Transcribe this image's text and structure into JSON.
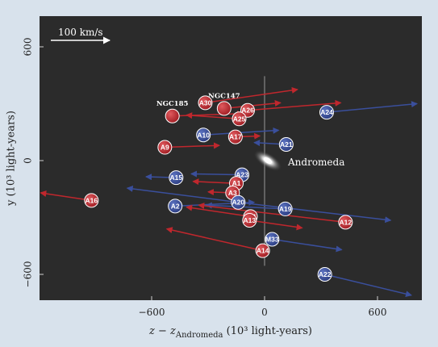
{
  "chart_data": {
    "type": "scatter",
    "xlabel": "z − z",
    "xlabel_sub": "Andromeda",
    "xlabel_units": " (10³ light-years)",
    "ylabel": "y (10³ light-years)",
    "xlim": [
      -1200,
      800
    ],
    "ylim": [
      -735,
      675
    ],
    "xticks": [
      -600,
      0,
      600
    ],
    "yticks": [
      -600,
      0,
      600
    ],
    "xtick_labels": [
      "−600",
      "0",
      "600"
    ],
    "ytick_labels": [
      "−600",
      "0",
      "600"
    ],
    "scale_arrow": {
      "label": "100 km/s"
    },
    "center_label": "Andromeda",
    "colors": {
      "red": "#c0272d",
      "blue": "#3a4f9c",
      "background": "#2b2b2b",
      "panel": "#d8e2ec"
    },
    "points": [
      {
        "name": "NGC185",
        "label_text": "NGC185",
        "color": "red",
        "kind": "named",
        "x": -490,
        "y": 235,
        "vx": 375,
        "vy": 13
      },
      {
        "name": "NGC147",
        "label_text": "NGC147",
        "color": "red",
        "kind": "named",
        "x": -215,
        "y": 275,
        "vx": 300,
        "vy": 30
      },
      {
        "name": "A30",
        "label_text": "A30",
        "color": "red",
        "x": -315,
        "y": 305,
        "vx": 490,
        "vy": 70
      },
      {
        "name": "A26",
        "label_text": "A26",
        "color": "red",
        "x": -90,
        "y": 265,
        "vx": 495,
        "vy": 40
      },
      {
        "name": "A25",
        "label_text": "A25",
        "color": "red",
        "x": -135,
        "y": 220,
        "vx": -280,
        "vy": 20
      },
      {
        "name": "A24",
        "label_text": "A24",
        "color": "blue",
        "x": 330,
        "y": 255,
        "vx": 480,
        "vy": 45
      },
      {
        "name": "A10",
        "label_text": "A10",
        "color": "blue",
        "x": -325,
        "y": 135,
        "vx": 400,
        "vy": 25
      },
      {
        "name": "A17",
        "label_text": "A17",
        "color": "red",
        "x": -155,
        "y": 125,
        "vx": 130,
        "vy": 5
      },
      {
        "name": "A21",
        "label_text": "A21",
        "color": "blue",
        "x": 115,
        "y": 85,
        "vx": -170,
        "vy": 10
      },
      {
        "name": "A9",
        "label_text": "A9",
        "color": "red",
        "x": -530,
        "y": 70,
        "vx": 290,
        "vy": 10
      },
      {
        "name": "A23",
        "label_text": "A23",
        "color": "blue",
        "x": -120,
        "y": -75,
        "vx": -270,
        "vy": 5
      },
      {
        "name": "A15",
        "label_text": "A15",
        "color": "blue",
        "x": -470,
        "y": -90,
        "vx": -160,
        "vy": 5
      },
      {
        "name": "A1",
        "label_text": "A1",
        "color": "red",
        "x": -150,
        "y": -120,
        "vx": -230,
        "vy": 10
      },
      {
        "name": "A3",
        "label_text": "A3",
        "color": "red",
        "x": -170,
        "y": -170,
        "vx": -130,
        "vy": 5
      },
      {
        "name": "A16",
        "label_text": "A16",
        "color": "red",
        "x": -920,
        "y": -210,
        "vx": -270,
        "vy": 40
      },
      {
        "name": "A2",
        "label_text": "A2",
        "color": "blue",
        "x": -475,
        "y": -240,
        "vx": 420,
        "vy": 20
      },
      {
        "name": "A20",
        "label_text": "A20",
        "color": "blue",
        "x": -140,
        "y": -220,
        "vx": -590,
        "vy": 75
      },
      {
        "name": "A19",
        "label_text": "A19",
        "color": "blue",
        "x": 110,
        "y": -255,
        "vx": -420,
        "vy": 20
      },
      {
        "name": "A11",
        "label_text": "A11",
        "color": "red",
        "x": -75,
        "y": -295,
        "vx": -340,
        "vy": 50
      },
      {
        "name": "A13",
        "label_text": "A13",
        "color": "red",
        "x": -80,
        "y": -315,
        "vx": 280,
        "vy": -40
      },
      {
        "name": "A12",
        "label_text": "A12",
        "color": "red",
        "x": 430,
        "y": -325,
        "vx": -780,
        "vy": 90
      },
      {
        "name": "M33",
        "label_text": "M33",
        "color": "blue",
        "x": 40,
        "y": -415,
        "vx": 370,
        "vy": -55
      },
      {
        "name": "A14",
        "label_text": "A14",
        "color": "red",
        "x": -10,
        "y": -475,
        "vx": -510,
        "vy": 115
      },
      {
        "name": "A22",
        "label_text": "A22",
        "color": "blue",
        "x": 320,
        "y": -600,
        "vx": 460,
        "vy": -110
      }
    ],
    "extra_arrows": [
      {
        "name": "blue-long-arrow-A20",
        "color": "blue",
        "x": -140,
        "y": -220,
        "vx": 810,
        "vy": -95
      }
    ]
  }
}
